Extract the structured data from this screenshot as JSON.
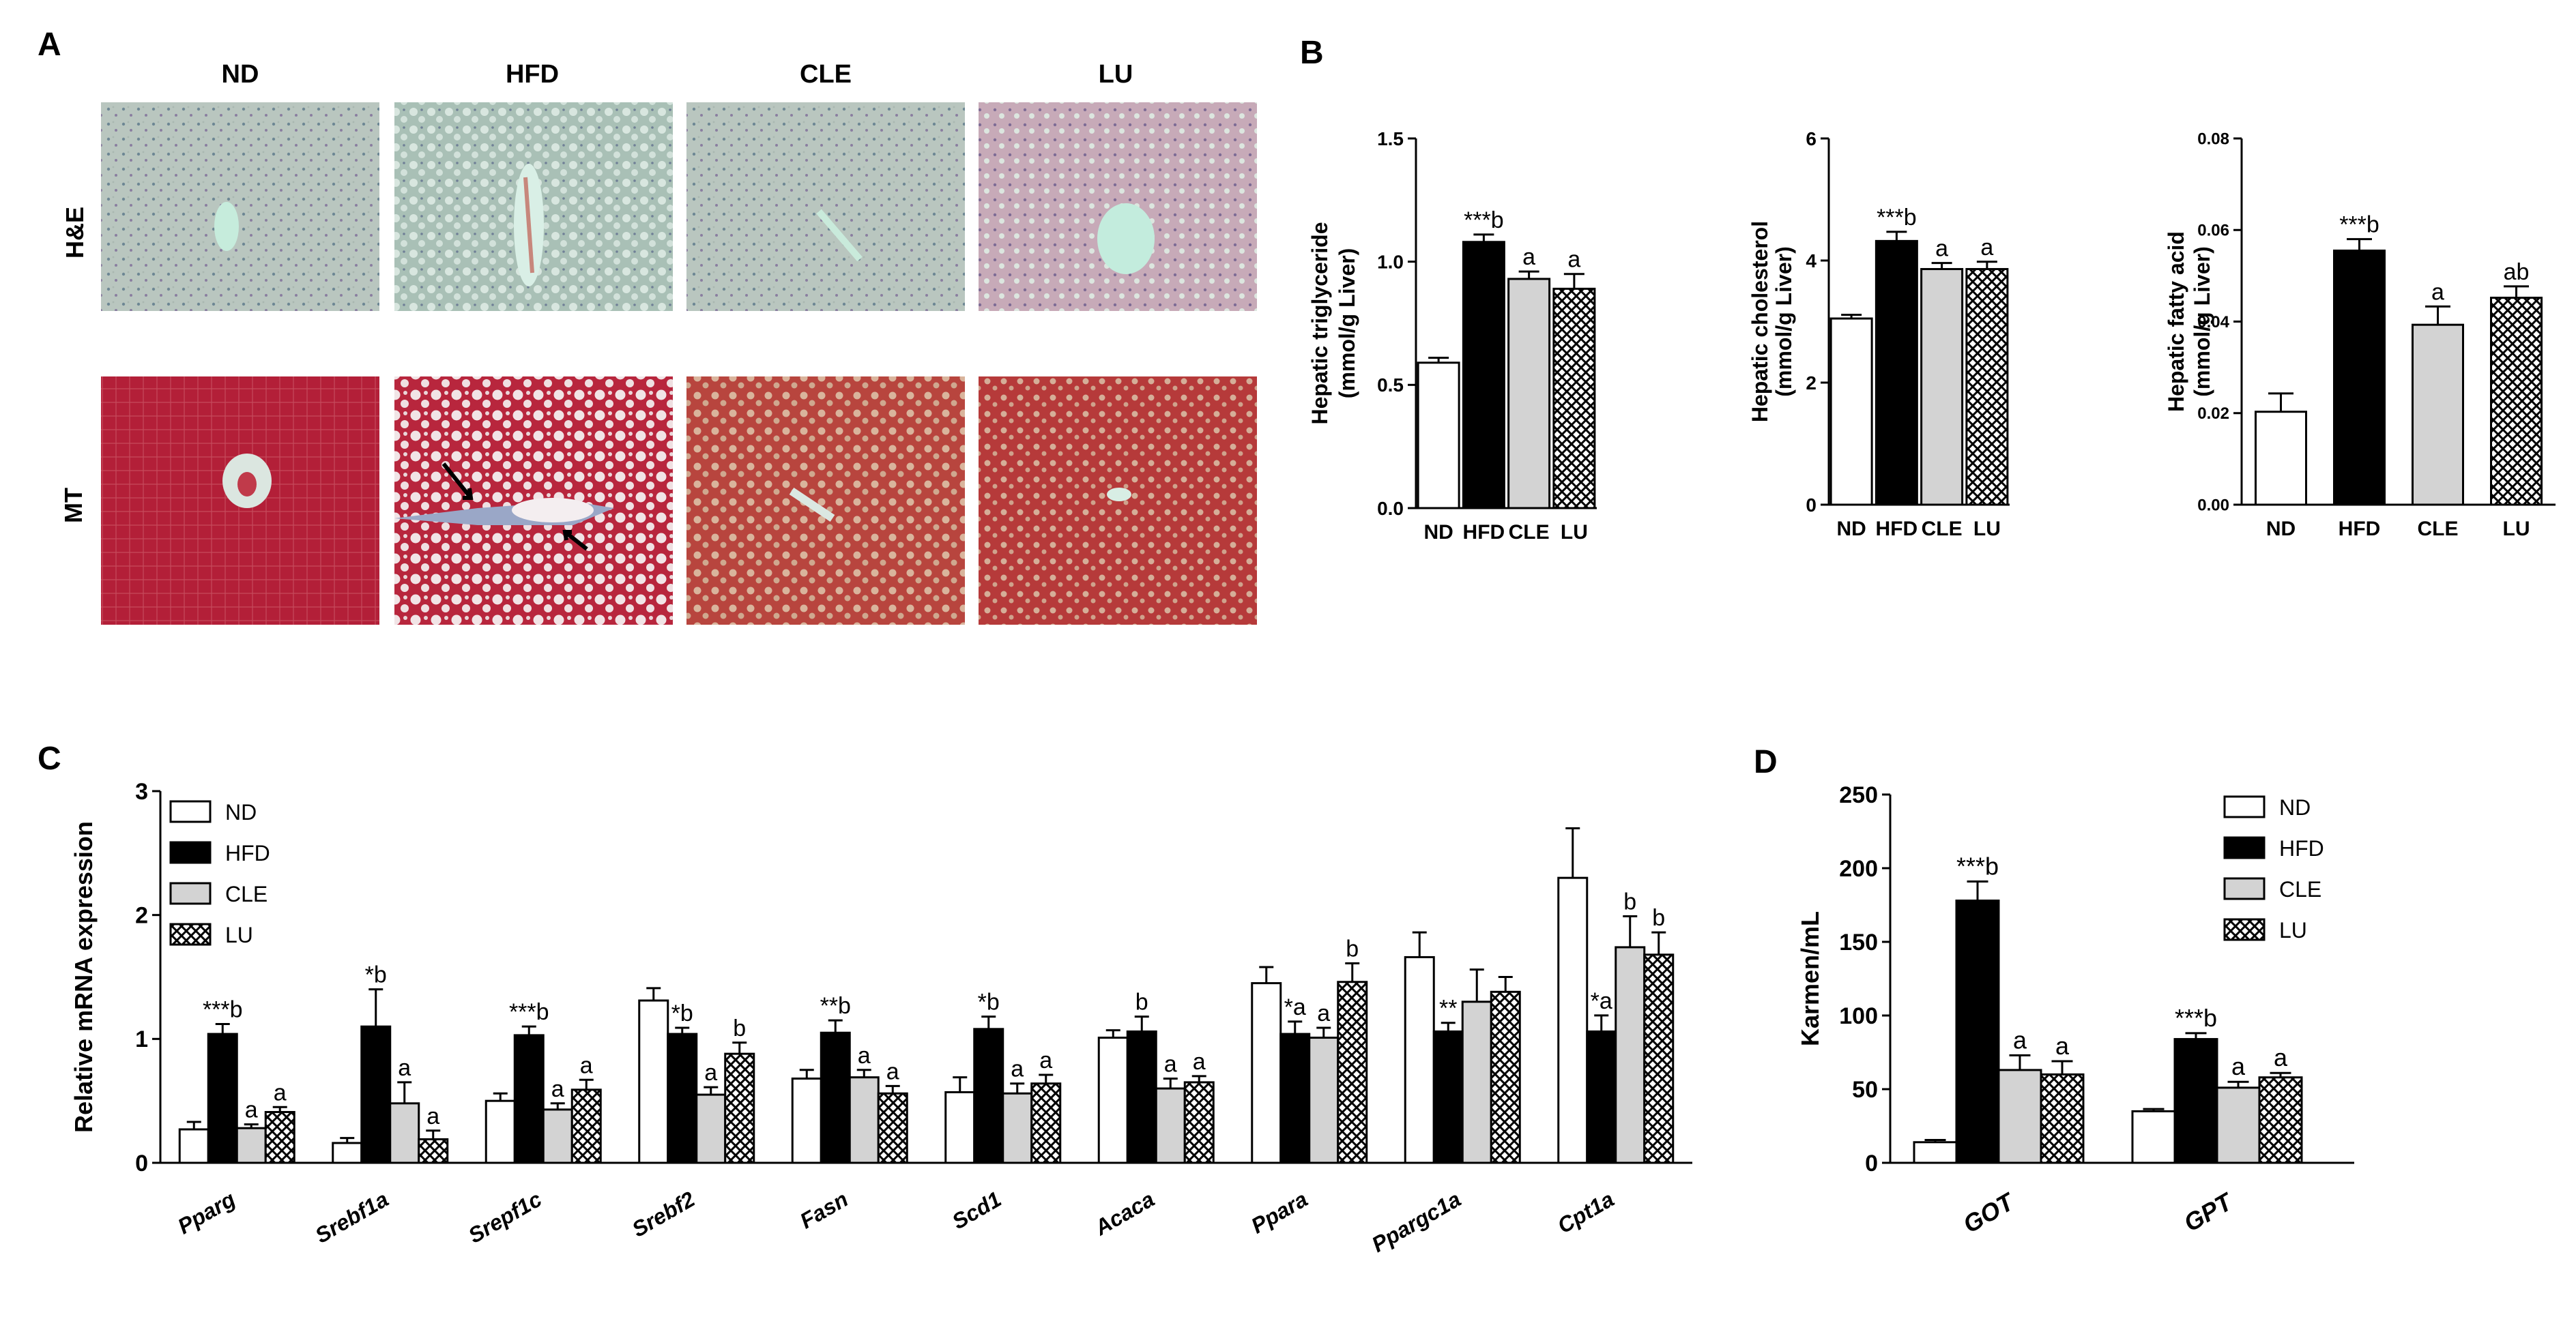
{
  "panel_labels": {
    "A": "A",
    "B": "B",
    "C": "C",
    "D": "D"
  },
  "histology": {
    "columns": [
      "ND",
      "HFD",
      "CLE",
      "LU"
    ],
    "rows": [
      "H&E",
      "MT"
    ],
    "colors": {
      "he": "#b7c4bd",
      "he_cells": "#7f9aa0",
      "mt": "#b5243a",
      "mt_fat": "#d9b6a2",
      "vessel": "#c6ecdc"
    }
  },
  "chart_data": [
    {
      "id": "tg",
      "type": "bar",
      "categories": [
        "ND",
        "HFD",
        "CLE",
        "LU"
      ],
      "values": [
        0.59,
        1.08,
        0.93,
        0.89
      ],
      "errors": [
        0.02,
        0.03,
        0.03,
        0.06
      ],
      "annotations": [
        "",
        "***b",
        "a",
        "a"
      ],
      "ylabel_line1": "Hepatic triglyceride",
      "ylabel_line2": "(mmol/g Liver)",
      "ylim": [
        0,
        1.5
      ],
      "yticks": [
        0.0,
        0.5,
        1.0,
        1.5
      ],
      "ytick_labels": [
        "0.0",
        "0.5",
        "1.0",
        "1.5"
      ]
    },
    {
      "id": "chol",
      "type": "bar",
      "categories": [
        "ND",
        "HFD",
        "CLE",
        "LU"
      ],
      "values": [
        3.05,
        4.32,
        3.86,
        3.86
      ],
      "errors": [
        0.06,
        0.15,
        0.1,
        0.12
      ],
      "annotations": [
        "",
        "***b",
        "a",
        "a"
      ],
      "ylabel_line1": "Hepatic cholesterol",
      "ylabel_line2": "(mmol/g Liver)",
      "ylim": [
        0,
        6
      ],
      "yticks": [
        0,
        2,
        4,
        6
      ],
      "ytick_labels": [
        "0",
        "2",
        "4",
        "6"
      ]
    },
    {
      "id": "fa",
      "type": "bar",
      "categories": [
        "ND",
        "HFD",
        "CLE",
        "LU"
      ],
      "values": [
        0.0203,
        0.0555,
        0.0393,
        0.0452
      ],
      "errors": [
        0.004,
        0.0025,
        0.004,
        0.0025
      ],
      "annotations": [
        "",
        "***b",
        "a",
        "ab"
      ],
      "ylabel_line1": "Hepatic fatty acid",
      "ylabel_line2": "(mmol/g Liver)",
      "ylim": [
        0,
        0.08
      ],
      "yticks": [
        0,
        0.02,
        0.04,
        0.06,
        0.08
      ],
      "ytick_labels": [
        "0.00",
        "0.02",
        "0.04",
        "0.06",
        "0.08"
      ]
    },
    {
      "id": "mrna",
      "type": "bar",
      "categories": [
        "Pparg",
        "Srebf1a",
        "Srepf1c",
        "Srebf2",
        "Fasn",
        "Scd1",
        "Acaca",
        "Ppara",
        "Ppargc1a",
        "Cpt1a"
      ],
      "legend": [
        "ND",
        "HFD",
        "CLE",
        "LU"
      ],
      "series": [
        {
          "name": "ND",
          "values": [
            0.27,
            0.16,
            0.5,
            1.31,
            0.68,
            0.57,
            1.01,
            1.45,
            1.66,
            2.3
          ],
          "errors": [
            0.06,
            0.04,
            0.06,
            0.1,
            0.07,
            0.12,
            0.06,
            0.13,
            0.2,
            0.4
          ]
        },
        {
          "name": "HFD",
          "values": [
            1.04,
            1.1,
            1.03,
            1.04,
            1.05,
            1.08,
            1.06,
            1.04,
            1.06,
            1.06
          ],
          "errors": [
            0.08,
            0.3,
            0.07,
            0.05,
            0.1,
            0.1,
            0.12,
            0.1,
            0.07,
            0.13
          ]
        },
        {
          "name": "CLE",
          "values": [
            0.28,
            0.48,
            0.43,
            0.55,
            0.69,
            0.56,
            0.6,
            1.01,
            1.3,
            1.74
          ],
          "errors": [
            0.03,
            0.17,
            0.05,
            0.06,
            0.06,
            0.08,
            0.08,
            0.08,
            0.26,
            0.25
          ]
        },
        {
          "name": "LU",
          "values": [
            0.41,
            0.19,
            0.59,
            0.88,
            0.56,
            0.64,
            0.65,
            1.46,
            1.38,
            1.68
          ],
          "errors": [
            0.04,
            0.07,
            0.08,
            0.09,
            0.06,
            0.07,
            0.05,
            0.15,
            0.12,
            0.18
          ]
        }
      ],
      "annotations": [
        [
          "",
          "***b",
          "a",
          "a"
        ],
        [
          "",
          "*b",
          "a",
          "a"
        ],
        [
          "",
          "***b",
          "a",
          "a"
        ],
        [
          "",
          "*b",
          "a",
          "b"
        ],
        [
          "",
          "**b",
          "a",
          "a"
        ],
        [
          "",
          "*b",
          "a",
          "a"
        ],
        [
          "",
          "b",
          "a",
          "a"
        ],
        [
          "",
          "*a",
          "a",
          "b"
        ],
        [
          "",
          "**",
          "",
          ""
        ],
        [
          "",
          "*a",
          "b",
          "b"
        ]
      ],
      "ylabel": "Relative mRNA expression",
      "ylim": [
        0,
        3
      ],
      "yticks": [
        0,
        1,
        2,
        3
      ],
      "ytick_labels": [
        "0",
        "1",
        "2",
        "3"
      ],
      "legend_placement": "top-left"
    },
    {
      "id": "enzymes",
      "type": "bar",
      "categories": [
        "GOT",
        "GPT"
      ],
      "legend": [
        "ND",
        "HFD",
        "CLE",
        "LU"
      ],
      "series": [
        {
          "name": "ND",
          "values": [
            14,
            35
          ],
          "errors": [
            1.5,
            1.5
          ]
        },
        {
          "name": "HFD",
          "values": [
            178,
            84
          ],
          "errors": [
            13,
            4
          ]
        },
        {
          "name": "CLE",
          "values": [
            63,
            51
          ],
          "errors": [
            10,
            4
          ]
        },
        {
          "name": "LU",
          "values": [
            60,
            58
          ],
          "errors": [
            9,
            3
          ]
        }
      ],
      "annotations": [
        [
          "",
          "***b",
          "a",
          "a"
        ],
        [
          "",
          "***b",
          "a",
          "a"
        ]
      ],
      "ylabel": "Karmen/mL",
      "ylim": [
        0,
        250
      ],
      "yticks": [
        0,
        50,
        100,
        150,
        200,
        250
      ],
      "ytick_labels": [
        "0",
        "50",
        "100",
        "150",
        "200",
        "250"
      ],
      "legend_placement": "top-right"
    }
  ],
  "group_styles": {
    "ND": "#ffffff",
    "HFD": "#000000",
    "CLE": "#d3d3d3",
    "LU": "crosshatch"
  }
}
